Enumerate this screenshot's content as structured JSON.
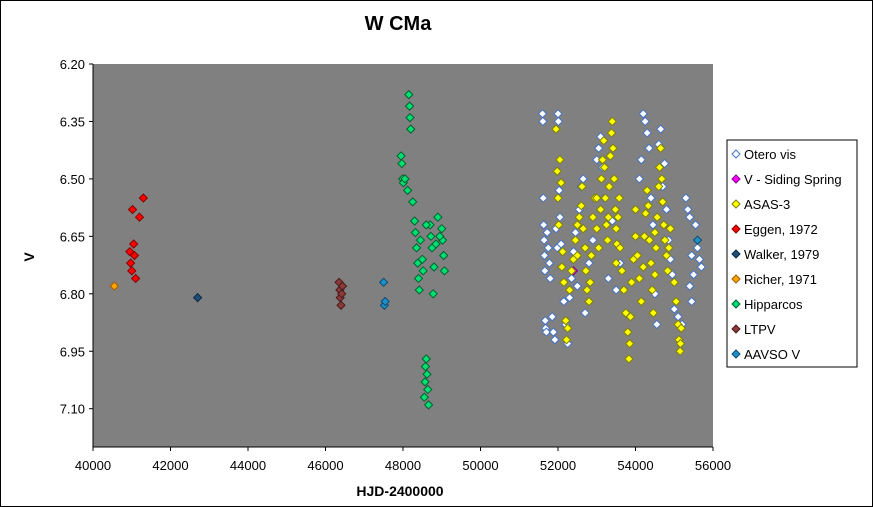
{
  "chart_data": {
    "type": "scatter",
    "title": "W CMa",
    "xlabel": "HJD-2400000",
    "ylabel": "V",
    "xlim": [
      40000,
      56000
    ],
    "ylim": [
      6.2,
      7.2
    ],
    "y_inverted": true,
    "x_ticks": [
      "40000",
      "42000",
      "44000",
      "46000",
      "48000",
      "50000",
      "52000",
      "54000",
      "56000"
    ],
    "y_ticks": [
      "6.20",
      "6.35",
      "6.50",
      "6.65",
      "6.80",
      "6.95",
      "7.10"
    ],
    "plot_background": "#808080",
    "legend_position": "right",
    "series": [
      {
        "name": "Otero vis",
        "color": "#ffffff",
        "edge": "#4472c4",
        "points": [
          [
            51600,
            6.33
          ],
          [
            51610,
            6.35
          ],
          [
            51620,
            6.55
          ],
          [
            51630,
            6.62
          ],
          [
            51640,
            6.66
          ],
          [
            51650,
            6.7
          ],
          [
            51660,
            6.74
          ],
          [
            51670,
            6.87
          ],
          [
            51680,
            6.89
          ],
          [
            51700,
            6.9
          ],
          [
            51720,
            6.64
          ],
          [
            51750,
            6.68
          ],
          [
            51780,
            6.72
          ],
          [
            51800,
            6.76
          ],
          [
            51850,
            6.86
          ],
          [
            51880,
            6.9
          ],
          [
            51920,
            6.92
          ],
          [
            51950,
            6.63
          ],
          [
            51980,
            6.68
          ],
          [
            52000,
            6.33
          ],
          [
            52010,
            6.35
          ],
          [
            52030,
            6.53
          ],
          [
            52050,
            6.6
          ],
          [
            52080,
            6.67
          ],
          [
            52100,
            6.73
          ],
          [
            52150,
            6.82
          ],
          [
            52200,
            6.88
          ],
          [
            52250,
            6.93
          ],
          [
            52300,
            6.81
          ],
          [
            52350,
            6.76
          ],
          [
            52400,
            6.69
          ],
          [
            52450,
            6.64
          ],
          [
            52500,
            6.78
          ],
          [
            52550,
            6.58
          ],
          [
            52600,
            6.52
          ],
          [
            52650,
            6.5
          ],
          [
            52700,
            6.85
          ],
          [
            52800,
            6.72
          ],
          [
            52900,
            6.66
          ],
          [
            53000,
            6.45
          ],
          [
            53050,
            6.42
          ],
          [
            53100,
            6.39
          ],
          [
            53150,
            6.47
          ],
          [
            53200,
            6.55
          ],
          [
            53300,
            6.76
          ],
          [
            53400,
            6.61
          ],
          [
            53500,
            6.79
          ],
          [
            53600,
            6.72
          ],
          [
            54100,
            6.5
          ],
          [
            54150,
            6.45
          ],
          [
            54200,
            6.33
          ],
          [
            54250,
            6.35
          ],
          [
            54300,
            6.38
          ],
          [
            54350,
            6.42
          ],
          [
            54400,
            6.55
          ],
          [
            54450,
            6.62
          ],
          [
            54500,
            6.8
          ],
          [
            54550,
            6.88
          ],
          [
            54600,
            6.41
          ],
          [
            54650,
            6.37
          ],
          [
            54700,
            6.52
          ],
          [
            54750,
            6.46
          ],
          [
            54800,
            6.58
          ],
          [
            54850,
            6.66
          ],
          [
            54900,
            6.71
          ],
          [
            54950,
            6.75
          ],
          [
            55000,
            6.84
          ],
          [
            55100,
            6.86
          ],
          [
            55200,
            6.88
          ],
          [
            55300,
            6.55
          ],
          [
            55350,
            6.58
          ],
          [
            55400,
            6.6
          ],
          [
            55450,
            6.7
          ],
          [
            55500,
            6.75
          ],
          [
            55550,
            6.62
          ],
          [
            55600,
            6.68
          ],
          [
            55650,
            6.71
          ],
          [
            55700,
            6.73
          ],
          [
            55400,
            6.78
          ],
          [
            55450,
            6.82
          ]
        ]
      },
      {
        "name": "V - Siding Spring",
        "color": "#ff00ff",
        "edge": "#800080",
        "points": [
          [
            52400,
            6.74
          ]
        ]
      },
      {
        "name": "ASAS-3",
        "color": "#ffff00",
        "edge": "#808000",
        "points": [
          [
            51950,
            6.37
          ],
          [
            51980,
            6.48
          ],
          [
            52000,
            6.55
          ],
          [
            52020,
            6.62
          ],
          [
            52050,
            6.45
          ],
          [
            52080,
            6.51
          ],
          [
            52100,
            6.73
          ],
          [
            52120,
            6.69
          ],
          [
            52150,
            6.77
          ],
          [
            52200,
            6.87
          ],
          [
            52220,
            6.92
          ],
          [
            52250,
            6.89
          ],
          [
            52300,
            6.79
          ],
          [
            52350,
            6.74
          ],
          [
            52400,
            6.71
          ],
          [
            52450,
            6.66
          ],
          [
            52500,
            6.62
          ],
          [
            52550,
            6.6
          ],
          [
            52600,
            6.57
          ],
          [
            52620,
            6.52
          ],
          [
            52650,
            6.63
          ],
          [
            52700,
            6.68
          ],
          [
            52720,
            6.74
          ],
          [
            52750,
            6.79
          ],
          [
            52800,
            6.82
          ],
          [
            52830,
            6.77
          ],
          [
            52860,
            6.7
          ],
          [
            52900,
            6.6
          ],
          [
            52950,
            6.55
          ],
          [
            53000,
            6.63
          ],
          [
            53050,
            6.68
          ],
          [
            53100,
            6.58
          ],
          [
            53120,
            6.5
          ],
          [
            53150,
            6.45
          ],
          [
            53180,
            6.4
          ],
          [
            53200,
            6.47
          ],
          [
            53220,
            6.55
          ],
          [
            53250,
            6.62
          ],
          [
            53280,
            6.66
          ],
          [
            53300,
            6.6
          ],
          [
            53320,
            6.52
          ],
          [
            53350,
            6.44
          ],
          [
            53380,
            6.38
          ],
          [
            53400,
            6.35
          ],
          [
            53420,
            6.42
          ],
          [
            53450,
            6.5
          ],
          [
            53480,
            6.58
          ],
          [
            53500,
            6.63
          ],
          [
            53520,
            6.67
          ],
          [
            53550,
            6.6
          ],
          [
            53580,
            6.55
          ],
          [
            53600,
            6.68
          ],
          [
            53650,
            6.74
          ],
          [
            53700,
            6.79
          ],
          [
            53750,
            6.85
          ],
          [
            53800,
            6.9
          ],
          [
            53830,
            6.97
          ],
          [
            53850,
            6.93
          ],
          [
            53870,
            6.86
          ],
          [
            53900,
            6.77
          ],
          [
            53950,
            6.71
          ],
          [
            54000,
            6.65
          ],
          [
            54050,
            6.7
          ],
          [
            54100,
            6.76
          ],
          [
            54150,
            6.82
          ],
          [
            54200,
            6.73
          ],
          [
            54230,
            6.65
          ],
          [
            54260,
            6.59
          ],
          [
            54300,
            6.53
          ],
          [
            54330,
            6.57
          ],
          [
            54360,
            6.66
          ],
          [
            54400,
            6.72
          ],
          [
            54430,
            6.79
          ],
          [
            54460,
            6.85
          ],
          [
            54500,
            6.75
          ],
          [
            54530,
            6.68
          ],
          [
            54560,
            6.6
          ],
          [
            54600,
            6.52
          ],
          [
            54620,
            6.47
          ],
          [
            54650,
            6.42
          ],
          [
            54680,
            6.5
          ],
          [
            54700,
            6.56
          ],
          [
            54730,
            6.62
          ],
          [
            54760,
            6.66
          ],
          [
            54800,
            6.7
          ],
          [
            54830,
            6.74
          ],
          [
            54860,
            6.68
          ],
          [
            54900,
            6.63
          ],
          [
            55000,
            6.77
          ],
          [
            55050,
            6.82
          ],
          [
            55100,
            6.88
          ],
          [
            55120,
            6.92
          ],
          [
            55150,
            6.95
          ],
          [
            55160,
            6.93
          ],
          [
            55180,
            6.89
          ],
          [
            52500,
            6.7
          ],
          [
            53000,
            6.55
          ],
          [
            53500,
            6.72
          ],
          [
            54000,
            6.58
          ],
          [
            54500,
            6.64
          ]
        ]
      },
      {
        "name": "Eggen, 1972",
        "color": "#ff0000",
        "edge": "#800000",
        "points": [
          [
            40950,
            6.69
          ],
          [
            40970,
            6.72
          ],
          [
            41000,
            6.74
          ],
          [
            41020,
            6.58
          ],
          [
            41050,
            6.67
          ],
          [
            41070,
            6.7
          ],
          [
            41100,
            6.76
          ],
          [
            41200,
            6.6
          ],
          [
            41300,
            6.55
          ]
        ]
      },
      {
        "name": "Walker, 1979",
        "color": "#1f4e79",
        "edge": "#0b2a45",
        "points": [
          [
            42700,
            6.81
          ]
        ]
      },
      {
        "name": "Richer, 1971",
        "color": "#ffa500",
        "edge": "#a05a00",
        "points": [
          [
            40550,
            6.78
          ]
        ]
      },
      {
        "name": "Hipparcos",
        "color": "#00e070",
        "edge": "#006030",
        "points": [
          [
            47950,
            6.44
          ],
          [
            47970,
            6.46
          ],
          [
            47990,
            6.5
          ],
          [
            48010,
            6.51
          ],
          [
            48050,
            6.5
          ],
          [
            48120,
            6.53
          ],
          [
            48150,
            6.28
          ],
          [
            48170,
            6.31
          ],
          [
            48180,
            6.34
          ],
          [
            48200,
            6.37
          ],
          [
            48250,
            6.56
          ],
          [
            48300,
            6.61
          ],
          [
            48320,
            6.64
          ],
          [
            48350,
            6.68
          ],
          [
            48380,
            6.72
          ],
          [
            48400,
            6.76
          ],
          [
            48420,
            6.79
          ],
          [
            48450,
            6.66
          ],
          [
            48500,
            6.71
          ],
          [
            48520,
            6.74
          ],
          [
            48550,
            7.07
          ],
          [
            48570,
            7.03
          ],
          [
            48580,
            6.99
          ],
          [
            48600,
            6.97
          ],
          [
            48620,
            7.01
          ],
          [
            48640,
            7.05
          ],
          [
            48660,
            7.09
          ],
          [
            48700,
            6.62
          ],
          [
            48720,
            6.65
          ],
          [
            48750,
            6.68
          ],
          [
            48780,
            6.8
          ],
          [
            48800,
            6.73
          ],
          [
            48850,
            6.67
          ],
          [
            49000,
            6.63
          ],
          [
            49020,
            6.66
          ],
          [
            49050,
            6.7
          ],
          [
            49070,
            6.74
          ],
          [
            48900,
            6.6
          ],
          [
            48950,
            6.65
          ],
          [
            48600,
            6.62
          ]
        ]
      },
      {
        "name": "LTPV",
        "color": "#8b3a3a",
        "edge": "#4a1a1a",
        "points": [
          [
            46350,
            6.77
          ],
          [
            46370,
            6.79
          ],
          [
            46380,
            6.81
          ],
          [
            46400,
            6.83
          ],
          [
            46420,
            6.8
          ],
          [
            46440,
            6.78
          ]
        ]
      },
      {
        "name": "AAVSO V",
        "color": "#1e90c8",
        "edge": "#0b4a70",
        "points": [
          [
            47500,
            6.77
          ],
          [
            47520,
            6.83
          ],
          [
            47540,
            6.82
          ],
          [
            55600,
            6.66
          ]
        ]
      }
    ]
  }
}
